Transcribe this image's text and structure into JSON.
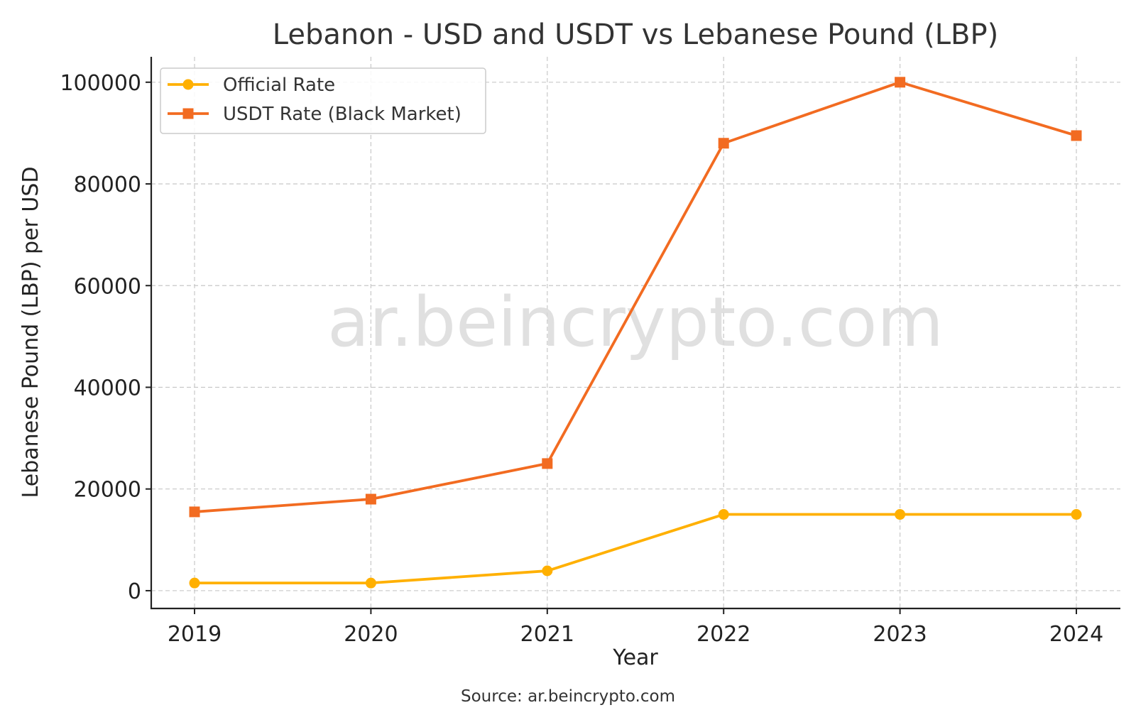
{
  "chart_data": {
    "type": "line",
    "title": "Lebanon - USD and USDT vs Lebanese Pound (LBP)",
    "xlabel": "Year",
    "ylabel": "Lebanese Pound (LBP) per USD",
    "categories": [
      "2019",
      "2020",
      "2021",
      "2022",
      "2023",
      "2024"
    ],
    "yticks": [
      "0",
      "20000",
      "40000",
      "60000",
      "80000",
      "100000"
    ],
    "ylim": [
      -3500,
      105000
    ],
    "grid": true,
    "legend_position": "top-left",
    "series": [
      {
        "name": "Official Rate",
        "color": "#FFB000",
        "marker": "circle",
        "values": [
          1507,
          1507,
          3900,
          15000,
          15000,
          15000
        ]
      },
      {
        "name": "USDT Rate (Black Market)",
        "color": "#F26B21",
        "marker": "square",
        "values": [
          15500,
          18000,
          25000,
          88000,
          100000,
          89500
        ]
      }
    ]
  },
  "watermark": "ar.beincrypto.com",
  "source": "Source: ar.beincrypto.com"
}
